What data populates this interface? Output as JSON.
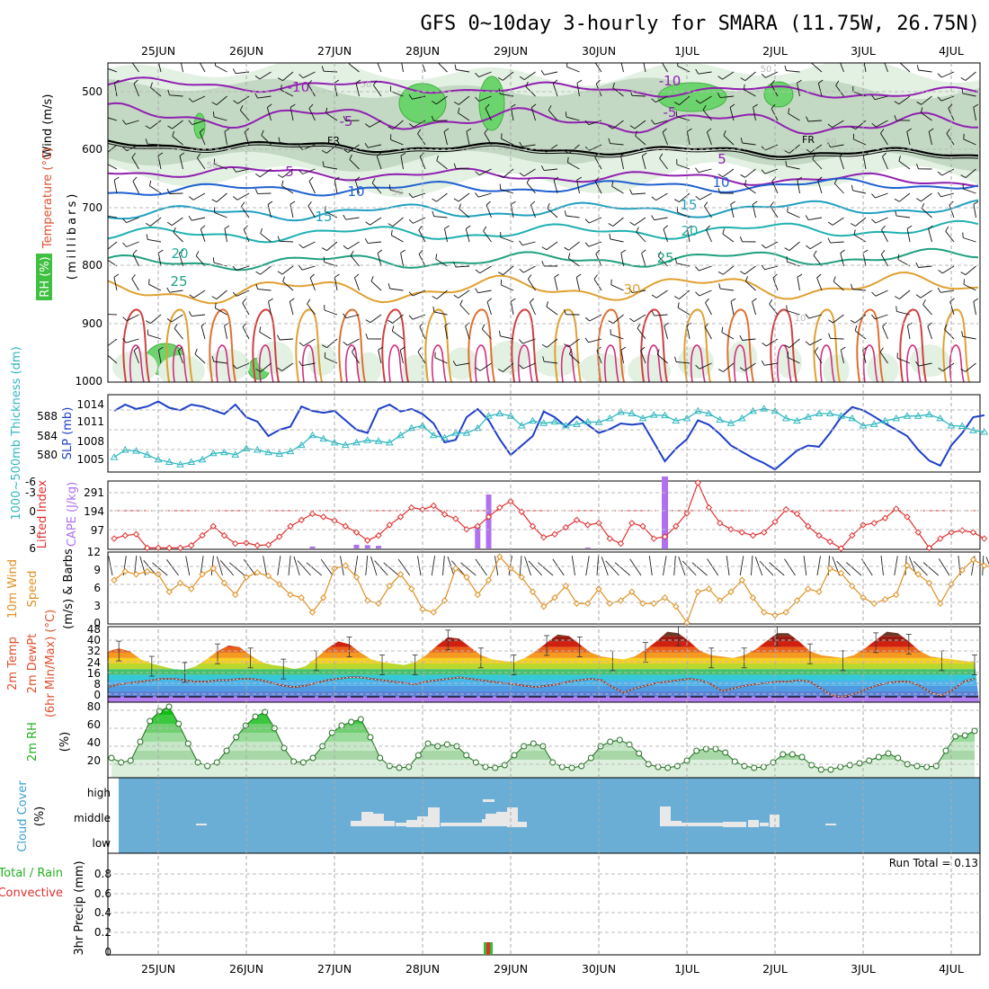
{
  "title": "GFS 0~10day 3-hourly for SMARA (11.75W, 26.75N)",
  "dates": [
    "25JUN",
    "26JUN",
    "27JUN",
    "28JUN",
    "29JUN",
    "30JUN",
    "1JUL",
    "2JUL",
    "3JUL",
    "4JUL"
  ],
  "colors": {
    "temp_warm": "#e0a030",
    "temp_hot": "#d04040",
    "temp_mid": "#20b090",
    "temp_cool": "#20a0c0",
    "temp_cold": "#2060d0",
    "temp_neg": "#9020b0",
    "rh": "#40c040",
    "thickness": "#30b8c0",
    "slp": "#1e3fc8",
    "cape": "#b070f0",
    "lifted": "#e03030",
    "wind": "#e09020",
    "rh2m": "#20c020",
    "cloud_bg": "#6aaed6",
    "cloud_fill": "#e8e8e8"
  },
  "panel1": {
    "ylabel_wind": "Wind (m/s)",
    "ylabel_temp": "Temperature (°C)",
    "ylabel_mb": "(millibars)",
    "rh_label": "RH (%)",
    "yticks": [
      "500",
      "600",
      "700",
      "800",
      "900",
      "1000"
    ],
    "contour_labels": [
      "-10",
      "-5",
      "FR",
      "5",
      "10",
      "15",
      "20",
      "25",
      "30",
      "-10",
      "-5",
      "FR",
      "5",
      "10",
      "15",
      "20",
      "25",
      "30",
      "50",
      "50",
      "50",
      "50",
      "30",
      "10"
    ]
  },
  "panel2": {
    "ylabel_left": "1000~500mb Thickness (dm)",
    "ylabel_right": "SLP (mb)",
    "left_ticks": [
      "588",
      "584",
      "580"
    ],
    "right_ticks": [
      "1014",
      "1011",
      "1008",
      "1005"
    ]
  },
  "panel3": {
    "ylabel_left": "Lifted Index",
    "ylabel_right": "CAPE (J/kg)",
    "li_ticks": [
      "-6",
      "-3",
      "0",
      "3",
      "6"
    ],
    "cape_ticks": [
      "291",
      "194",
      "97"
    ]
  },
  "panel4": {
    "ylabel1": "10m Wind",
    "ylabel2": "Speed",
    "ylabel3": "(m/s) & Barbs",
    "yticks": [
      "12",
      "9",
      "6",
      "3",
      "0"
    ]
  },
  "panel5": {
    "ylabel1": "2m Temp",
    "ylabel2": "2m DewPt",
    "ylabel3": "(6hr Min/Max) (°C)",
    "yticks": [
      "48",
      "40",
      "32",
      "24",
      "16",
      "8",
      "0"
    ]
  },
  "panel6": {
    "ylabel1": "2m RH",
    "ylabel2": "(%)",
    "yticks": [
      "80",
      "60",
      "40",
      "20"
    ]
  },
  "panel7": {
    "ylabel1": "Cloud Cover",
    "ylabel2": "(%)",
    "levels": [
      "high",
      "middle",
      "low"
    ]
  },
  "panel8": {
    "ylabel1": "Total / Rain",
    "ylabel2": "Convective",
    "ylabel3": "3hr Precip (mm)",
    "yticks": [
      "0.8",
      "0.6",
      "0.4",
      "0.2",
      "0"
    ],
    "run_total": "Run Total = 0.13"
  },
  "chart_data": [
    {
      "type": "line",
      "title": "1000~500mb Thickness / SLP",
      "series": [
        {
          "name": "SLP (mb)",
          "values": [
            1013.5,
            1014.5,
            1013.8,
            1014.2,
            1015,
            1014,
            1013.6,
            1014.5,
            1014.2,
            1013.6,
            1013,
            1014.5,
            1012.5,
            1011.8,
            1009.5,
            1010.5,
            1011,
            1014.2,
            1013.5,
            1013.2,
            1013.5,
            1012,
            1010.5,
            1010,
            1013.8,
            1014.5,
            1013.4,
            1013.8,
            1013,
            1011.5,
            1008.5,
            1008.9,
            1012.5,
            1013.8,
            1012,
            1009,
            1006.5,
            1008,
            1009.5,
            1013.4,
            1012.5,
            1011,
            1012.6,
            1011.3,
            1010,
            1010.6,
            1011.5,
            1011.3,
            1011.5,
            1008.5,
            1005.5,
            1007.5,
            1009,
            1012,
            1011.3,
            1009.8,
            1008,
            1007,
            1006,
            1005.2,
            1004.2,
            1005.7,
            1007.2,
            1008,
            1007.8,
            1010,
            1012.5,
            1014.1,
            1013.6,
            1012.6,
            1011.5,
            1010.5,
            1009.5,
            1007.3,
            1005.6,
            1004.8,
            1008,
            1010,
            1012.5,
            1012.8
          ]
        },
        {
          "name": "1000~500mb Thickness (dm)",
          "values": [
            579,
            580.5,
            580.3,
            579.5,
            578.5,
            578,
            577.5,
            578,
            578.5,
            579.8,
            580,
            579.5,
            580.8,
            580.5,
            580,
            579.7,
            580.2,
            581.5,
            583.5,
            582.8,
            582,
            581.5,
            582,
            582.5,
            582.3,
            582,
            583.5,
            585,
            585.5,
            583.5,
            583,
            584,
            584,
            585,
            587.5,
            588,
            587.5,
            585.5,
            586.5,
            586,
            586.3,
            585.5,
            585.8,
            586.3,
            586.2,
            587,
            588.3,
            588,
            587,
            587.7,
            587.6,
            586.5,
            587,
            588.5,
            588,
            586.7,
            586,
            587,
            588.5,
            589,
            588.5,
            587,
            586.5,
            587.3,
            588,
            588,
            587.5,
            587,
            585.5,
            585.8,
            586.5,
            587,
            587.5,
            587.5,
            587.8,
            587,
            585.5,
            585.4,
            584.5,
            584.2
          ]
        }
      ]
    },
    {
      "type": "line",
      "title": "Lifted Index / CAPE",
      "series": [
        {
          "name": "Lifted Index",
          "values": [
            4.5,
            4,
            3.8,
            6,
            6,
            6,
            6,
            5.6,
            4,
            2.5,
            4,
            5.3,
            5.2,
            5.6,
            5.5,
            4.2,
            2.5,
            1.5,
            0.5,
            1,
            1.6,
            2.5,
            3.5,
            4.8,
            4,
            2.3,
            1,
            -0.5,
            -0.2,
            -0.8,
            0.6,
            1.3,
            3,
            2.5,
            1,
            -0.5,
            -1.5,
            0.2,
            2.5,
            4.3,
            3.8,
            2.7,
            1.5,
            2.3,
            2,
            4.5,
            5.3,
            2,
            2.5,
            4.5,
            4.2,
            2.5,
            0.4,
            -4.5,
            -0.5,
            2,
            3,
            3.5,
            4,
            3.5,
            1.8,
            -0.2,
            0.5,
            2.5,
            4,
            5,
            6.2,
            4,
            2.3,
            2,
            1.2,
            -0.3,
            1,
            3.5,
            6,
            4.5,
            3.5,
            3.2,
            3.5,
            4.5
          ]
        },
        {
          "name": "CAPE (J/kg)",
          "values": [
            0,
            0,
            0,
            0,
            0,
            0,
            0,
            0,
            0,
            0,
            0,
            0,
            0,
            0,
            0,
            0,
            0,
            0,
            10,
            0,
            0,
            0,
            20,
            18,
            14,
            0,
            0,
            0,
            0,
            0,
            0,
            0,
            0,
            120,
            290,
            0,
            0,
            0,
            0,
            0,
            0,
            0,
            0,
            5,
            0,
            0,
            0,
            0,
            0,
            0,
            0,
            0,
            0,
            0,
            0,
            0,
            0,
            0,
            0,
            0,
            0,
            0,
            0,
            0,
            0,
            0,
            0,
            0,
            0,
            0,
            0,
            0,
            0,
            0,
            0,
            0,
            0,
            0,
            0,
            0
          ]
        }
      ]
    },
    {
      "type": "line",
      "title": "10m Wind Speed (m/s)",
      "series": [
        {
          "name": "10m Wind Speed",
          "values": [
            7.5,
            9,
            8.5,
            9,
            8.5,
            5.5,
            7,
            6,
            8.5,
            9.5,
            7,
            5,
            8,
            8.8,
            8.2,
            6.8,
            5,
            4.5,
            2,
            4.5,
            9.5,
            10,
            8,
            4,
            3.5,
            6.5,
            8.5,
            6,
            2.5,
            2,
            4,
            9.5,
            8,
            5,
            7.5,
            11.5,
            9.5,
            8,
            5.5,
            3,
            4.5,
            6.5,
            3.5,
            3.5,
            6,
            3.5,
            4,
            5.5,
            3.5,
            3.5,
            4.5,
            3,
            0.2,
            5.5,
            6,
            4,
            5.5,
            7.5,
            4.5,
            2,
            1.5,
            2,
            4,
            6,
            5.5,
            9.5,
            8.7,
            6.5,
            4.5,
            3.5,
            4.2,
            5,
            10,
            8.5,
            7,
            3.5,
            6.8,
            9.2,
            11,
            10,
            9.5,
            8,
            3.5,
            1.8,
            4.5
          ]
        }
      ]
    },
    {
      "type": "area",
      "title": "2m Temp / 2m DewPt",
      "series": [
        {
          "name": "2m Temp",
          "values": [
            33,
            35,
            33,
            27,
            24,
            22,
            20,
            19.5,
            22,
            27,
            33,
            37,
            36,
            30,
            25,
            23,
            22,
            20,
            22,
            28,
            35,
            40,
            38,
            32,
            27,
            25,
            24,
            23,
            25,
            30,
            37,
            43,
            42,
            36,
            30,
            27,
            26,
            25,
            28,
            33,
            39,
            45,
            44,
            38,
            32,
            29,
            28,
            27,
            29,
            34,
            40,
            47,
            46,
            40,
            33,
            30,
            29,
            28,
            30,
            34,
            40,
            46,
            46,
            40,
            33,
            30,
            29,
            28,
            30,
            35,
            41,
            47,
            46,
            40,
            33,
            29,
            28,
            27,
            26,
            25
          ]
        },
        {
          "name": "2m DewPt",
          "values": [
            7,
            9,
            10,
            11,
            12,
            13,
            13,
            12,
            11,
            11,
            12,
            12,
            13,
            13,
            12,
            10,
            8,
            7,
            8,
            10,
            12,
            13,
            14,
            14,
            13,
            12,
            11,
            10,
            9,
            11,
            12,
            13,
            14,
            13,
            12,
            11,
            10,
            9,
            8,
            7,
            8,
            9,
            11,
            12,
            13,
            12,
            7,
            3,
            6,
            8,
            10,
            11,
            12,
            13,
            12,
            9,
            4,
            6,
            8,
            9,
            10,
            11,
            11,
            12,
            11,
            6,
            1,
            0,
            2,
            5,
            8,
            10,
            11,
            11,
            8,
            3,
            1,
            5,
            11,
            13
          ]
        }
      ]
    },
    {
      "type": "area",
      "title": "2m RH (%)",
      "series": [
        {
          "name": "2m RH",
          "values": [
            22,
            17,
            19,
            40,
            63,
            74,
            79,
            60,
            38,
            17,
            13,
            17,
            30,
            45,
            58,
            68,
            73,
            55,
            33,
            18,
            17,
            22,
            35,
            50,
            58,
            62,
            65,
            45,
            22,
            13,
            11,
            12,
            25,
            38,
            35,
            37,
            35,
            25,
            17,
            12,
            11,
            14,
            25,
            35,
            38,
            35,
            17,
            12,
            11,
            13,
            22,
            35,
            40,
            42,
            37,
            27,
            15,
            12,
            11,
            13,
            19,
            30,
            32,
            32,
            28,
            18,
            13,
            11,
            12,
            17,
            26,
            26,
            23,
            14,
            9,
            9,
            12,
            14,
            16,
            19,
            23,
            27,
            22,
            15,
            13,
            12,
            13,
            30,
            46,
            47,
            52
          ]
        }
      ]
    },
    {
      "type": "bar",
      "title": "3hr Precip (mm)",
      "x": [
        "28JUN 18Z"
      ],
      "series": [
        {
          "name": "Total / Rain",
          "values": [
            0.13
          ]
        }
      ],
      "ylim": [
        0,
        1
      ]
    }
  ]
}
